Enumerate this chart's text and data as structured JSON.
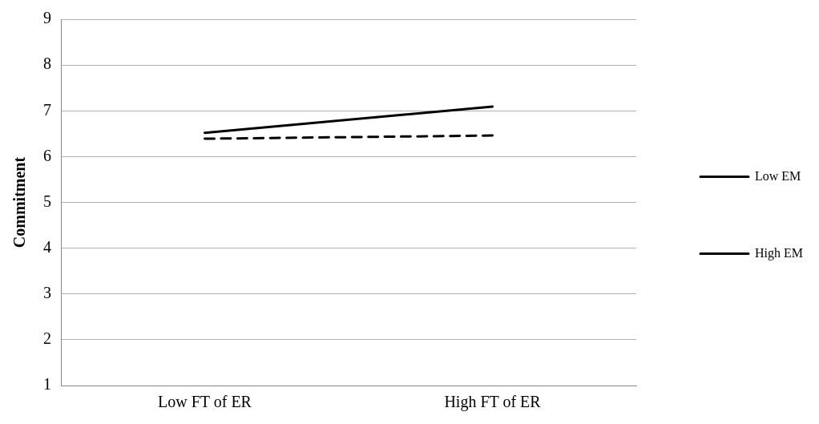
{
  "chart_data": {
    "type": "line",
    "ylabel": "Commitment",
    "categories": [
      "Low FT of ER",
      "High FT of ER"
    ],
    "series": [
      {
        "name": "Low EM",
        "color": "#000000",
        "line_style": "solid",
        "values": [
          6.52,
          7.09
        ]
      },
      {
        "name": "High EM",
        "color": "#000000",
        "line_style": "dashed",
        "values": [
          6.39,
          6.46
        ]
      }
    ],
    "ylim": [
      1,
      9
    ],
    "yticks": [
      1,
      2,
      3,
      4,
      5,
      6,
      7,
      8,
      9
    ],
    "grid": "y",
    "legend": "right",
    "marker": "none"
  }
}
